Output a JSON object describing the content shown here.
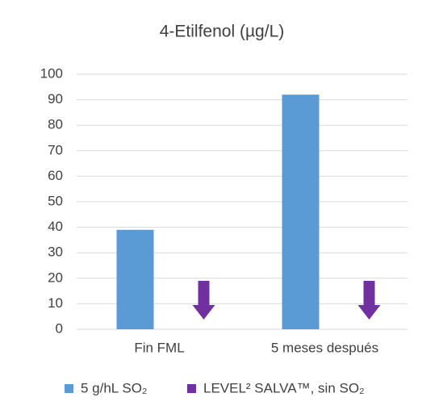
{
  "chart_data": {
    "type": "bar",
    "title": "4-Etilfenol (µg/L)",
    "categories": [
      "Fin FML",
      "5 meses después"
    ],
    "series": [
      {
        "name": "5 g/hL SO₂",
        "color": "#5b9bd5",
        "values": [
          39,
          92
        ]
      },
      {
        "name": "LEVEL² SALVA™, sin SO₂",
        "color": "#7030a0",
        "values": [
          19,
          19
        ],
        "marker": "arrow-down"
      }
    ],
    "ylim": [
      0,
      100
    ],
    "yticks": [
      0,
      10,
      20,
      30,
      40,
      50,
      60,
      70,
      80,
      90,
      100
    ],
    "grid": true
  }
}
